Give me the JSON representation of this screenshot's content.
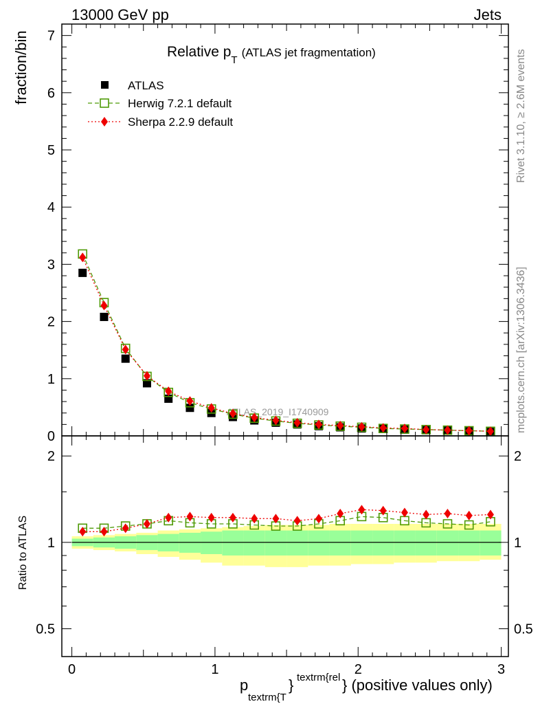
{
  "header": {
    "left": "13000 GeV pp",
    "right": "Jets"
  },
  "side_labels": {
    "rivet": "Rivet 3.1.10, ≥ 2.6M events",
    "mcplots": "mcplots.cern.ch [arXiv:1306.3436]"
  },
  "chart_data": [
    {
      "panel": "main",
      "type": "scatter",
      "title_main": "Relative p",
      "title_sub": "T",
      "title_suffix": "(ATLAS jet fragmentation)",
      "ylabel": "fraction/bin",
      "watermark": "ATLAS_2019_I1740909",
      "xlim": [
        -0.07,
        3.05
      ],
      "ylim": [
        0,
        7.2
      ],
      "yticks": [
        0,
        1,
        2,
        3,
        4,
        5,
        6,
        7
      ],
      "ytick_labels": [
        "0",
        "1",
        "2",
        "3",
        "4",
        "5",
        "6",
        "7"
      ],
      "legend_position": "top-left",
      "x": [
        0.075,
        0.225,
        0.375,
        0.525,
        0.675,
        0.825,
        0.975,
        1.125,
        1.275,
        1.425,
        1.575,
        1.725,
        1.875,
        2.025,
        2.175,
        2.325,
        2.475,
        2.625,
        2.775,
        2.925
      ],
      "series": [
        {
          "name": "ATLAS",
          "style": "data",
          "color": "#000000",
          "marker": "filled-square",
          "values": [
            2.85,
            2.08,
            1.35,
            0.92,
            0.65,
            0.49,
            0.4,
            0.33,
            0.27,
            0.23,
            0.2,
            0.17,
            0.15,
            0.13,
            0.12,
            0.11,
            0.1,
            0.09,
            0.08,
            0.07
          ]
        },
        {
          "name": "Herwig 7.2.1 default",
          "style": "mc",
          "color": "#4e9a06",
          "line": "dashed",
          "marker": "open-square",
          "values": [
            3.18,
            2.33,
            1.53,
            1.04,
            0.76,
            0.58,
            0.47,
            0.38,
            0.31,
            0.26,
            0.22,
            0.19,
            0.17,
            0.15,
            0.13,
            0.12,
            0.11,
            0.1,
            0.09,
            0.08
          ]
        },
        {
          "name": "Sherpa 2.2.9 default",
          "style": "mc",
          "color": "#ee0000",
          "line": "dotted",
          "marker": "filled-diamond",
          "values": [
            3.12,
            2.28,
            1.51,
            1.05,
            0.78,
            0.61,
            0.49,
            0.39,
            0.32,
            0.27,
            0.23,
            0.2,
            0.18,
            0.16,
            0.14,
            0.13,
            0.11,
            0.1,
            0.09,
            0.08
          ]
        }
      ]
    },
    {
      "panel": "ratio",
      "type": "line",
      "ylabel": "Ratio to ATLAS",
      "xlabel_main": "p",
      "xlabel_sub": "textrm{T",
      "xlabel_sup": "textrm{rel",
      "xlabel_suffix": "} (positive values only)",
      "xlabel_brace": "}",
      "xlim": [
        -0.07,
        3.05
      ],
      "xticks": [
        0,
        1,
        2,
        3
      ],
      "xtick_labels": [
        "0",
        "1",
        "2",
        "3"
      ],
      "ylim": [
        0.4,
        2.35
      ],
      "log_scale_y": true,
      "yticks": [
        0.5,
        1,
        2
      ],
      "ytick_labels": [
        "0.5",
        "1",
        "2"
      ],
      "reference_line": 1,
      "x": [
        0.075,
        0.225,
        0.375,
        0.525,
        0.675,
        0.825,
        0.975,
        1.125,
        1.275,
        1.425,
        1.575,
        1.725,
        1.875,
        2.025,
        2.175,
        2.325,
        2.475,
        2.625,
        2.775,
        2.925
      ],
      "band_green": {
        "lo": [
          0.97,
          0.96,
          0.95,
          0.94,
          0.93,
          0.92,
          0.91,
          0.9,
          0.9,
          0.9,
          0.9,
          0.9,
          0.9,
          0.9,
          0.9,
          0.9,
          0.9,
          0.9,
          0.9,
          0.9
        ],
        "hi": [
          1.03,
          1.04,
          1.05,
          1.06,
          1.07,
          1.08,
          1.09,
          1.1,
          1.1,
          1.1,
          1.1,
          1.1,
          1.1,
          1.1,
          1.1,
          1.1,
          1.1,
          1.1,
          1.1,
          1.1
        ]
      },
      "band_yellow": {
        "lo": [
          0.95,
          0.94,
          0.93,
          0.91,
          0.89,
          0.87,
          0.85,
          0.83,
          0.83,
          0.82,
          0.82,
          0.83,
          0.83,
          0.84,
          0.84,
          0.85,
          0.85,
          0.86,
          0.86,
          0.87
        ],
        "hi": [
          1.05,
          1.06,
          1.07,
          1.08,
          1.1,
          1.11,
          1.12,
          1.13,
          1.14,
          1.15,
          1.15,
          1.15,
          1.16,
          1.16,
          1.16,
          1.16,
          1.16,
          1.16,
          1.16,
          1.16
        ]
      },
      "series": [
        {
          "name": "Herwig 7.2.1 default",
          "color": "#4e9a06",
          "line": "dashed",
          "marker": "open-square",
          "values": [
            1.12,
            1.12,
            1.14,
            1.16,
            1.19,
            1.17,
            1.16,
            1.16,
            1.15,
            1.14,
            1.14,
            1.16,
            1.19,
            1.23,
            1.22,
            1.19,
            1.17,
            1.16,
            1.15,
            1.18
          ]
        },
        {
          "name": "Sherpa 2.2.9 default",
          "color": "#ee0000",
          "line": "dotted",
          "marker": "filled-diamond",
          "values": [
            1.09,
            1.09,
            1.12,
            1.16,
            1.22,
            1.23,
            1.22,
            1.22,
            1.21,
            1.21,
            1.19,
            1.21,
            1.26,
            1.3,
            1.29,
            1.27,
            1.25,
            1.26,
            1.24,
            1.25
          ]
        }
      ]
    }
  ]
}
